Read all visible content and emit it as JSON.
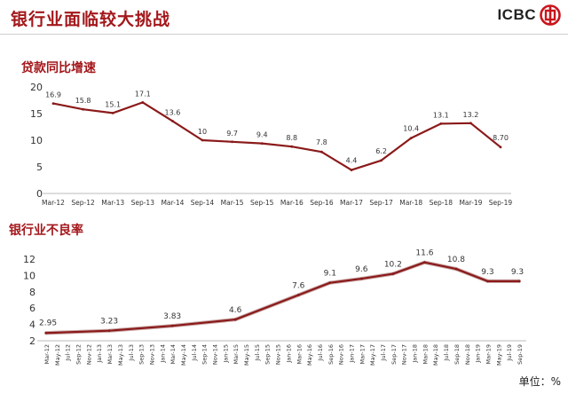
{
  "header": {
    "title": "银行业面临较大挑战",
    "logo_text": "ICBC",
    "logo_icon": "icbc-logo-icon",
    "accent_color": "#a3171b"
  },
  "footer": {
    "unit_label": "单位：%"
  },
  "chart_data": [
    {
      "type": "line",
      "title": "贷款同比增速",
      "xlabel": "",
      "ylabel": "",
      "ylim": [
        0,
        20
      ],
      "yticks": [
        0,
        5,
        10,
        15,
        20
      ],
      "grid": false,
      "line_color": "#8b1a1a",
      "categories": [
        "Mar-12",
        "Sep-12",
        "Mar-13",
        "Sep-13",
        "Mar-14",
        "Sep-14",
        "Mar-15",
        "Sep-15",
        "Mar-16",
        "Sep-16",
        "Mar-17",
        "Sep-17",
        "Mar-18",
        "Sep-18",
        "Mar-19",
        "Sep-19"
      ],
      "values": [
        16.9,
        15.8,
        15.1,
        17.1,
        13.6,
        10,
        9.7,
        9.4,
        8.8,
        7.8,
        4.4,
        6.2,
        10.4,
        13.1,
        13.2,
        8.7
      ],
      "data_labels": [
        "16.9",
        "15.8",
        "15.1",
        "17.1",
        "13.6",
        "10",
        "9.7",
        "9.4",
        "8.8",
        "7.8",
        "4.4",
        "6.2",
        "10.4",
        "13.1",
        "13.2",
        "8.70"
      ]
    },
    {
      "type": "line",
      "title": "银行业不良率",
      "xlabel": "",
      "ylabel": "",
      "ylim": [
        2,
        12
      ],
      "yticks": [
        2,
        4,
        6,
        8,
        10,
        12
      ],
      "grid": false,
      "line_color": "#8b1a1a",
      "categories": [
        "Mar-12",
        "May-12",
        "Jul-12",
        "Sep-12",
        "Nov-12",
        "Jan-13",
        "Mar-13",
        "May-13",
        "Jul-13",
        "Sep-13",
        "Nov-13",
        "Jan-14",
        "Mar-14",
        "May-14",
        "Jul-14",
        "Sep-14",
        "Nov-14",
        "Jan-15",
        "Mar-15",
        "May-15",
        "Jul-15",
        "Sep-15",
        "Nov-15",
        "Jan-16",
        "Mar-16",
        "May-16",
        "Jul-16",
        "Sep-16",
        "Nov-16",
        "Jan-17",
        "Mar-17",
        "May-17",
        "Jul-17",
        "Sep-17",
        "Nov-17",
        "Jan-18",
        "Mar-18",
        "May-18",
        "Jul-18",
        "Sep-18",
        "Nov-18",
        "Jan-19",
        "Mar-19",
        "May-19",
        "Jul-19",
        "Sep-19"
      ],
      "key_points": [
        {
          "x": "Mar-12",
          "y": 2.95,
          "label": "2.95"
        },
        {
          "x": "Mar-13",
          "y": 3.23,
          "label": "3.23"
        },
        {
          "x": "Mar-14",
          "y": 3.83,
          "label": "3.83"
        },
        {
          "x": "Mar-15",
          "y": 4.6,
          "label": "4.6"
        },
        {
          "x": "Mar-16",
          "y": 7.6,
          "label": "7.6"
        },
        {
          "x": "Sep-16",
          "y": 9.1,
          "label": "9.1"
        },
        {
          "x": "Mar-17",
          "y": 9.6,
          "label": "9.6"
        },
        {
          "x": "Sep-17",
          "y": 10.2,
          "label": "10.2"
        },
        {
          "x": "Mar-18",
          "y": 11.6,
          "label": "11.6"
        },
        {
          "x": "Sep-18",
          "y": 10.8,
          "label": "10.8"
        },
        {
          "x": "Mar-19",
          "y": 9.3,
          "label": "9.3"
        },
        {
          "x": "Sep-19",
          "y": 9.3,
          "label": "9.3"
        }
      ]
    }
  ]
}
